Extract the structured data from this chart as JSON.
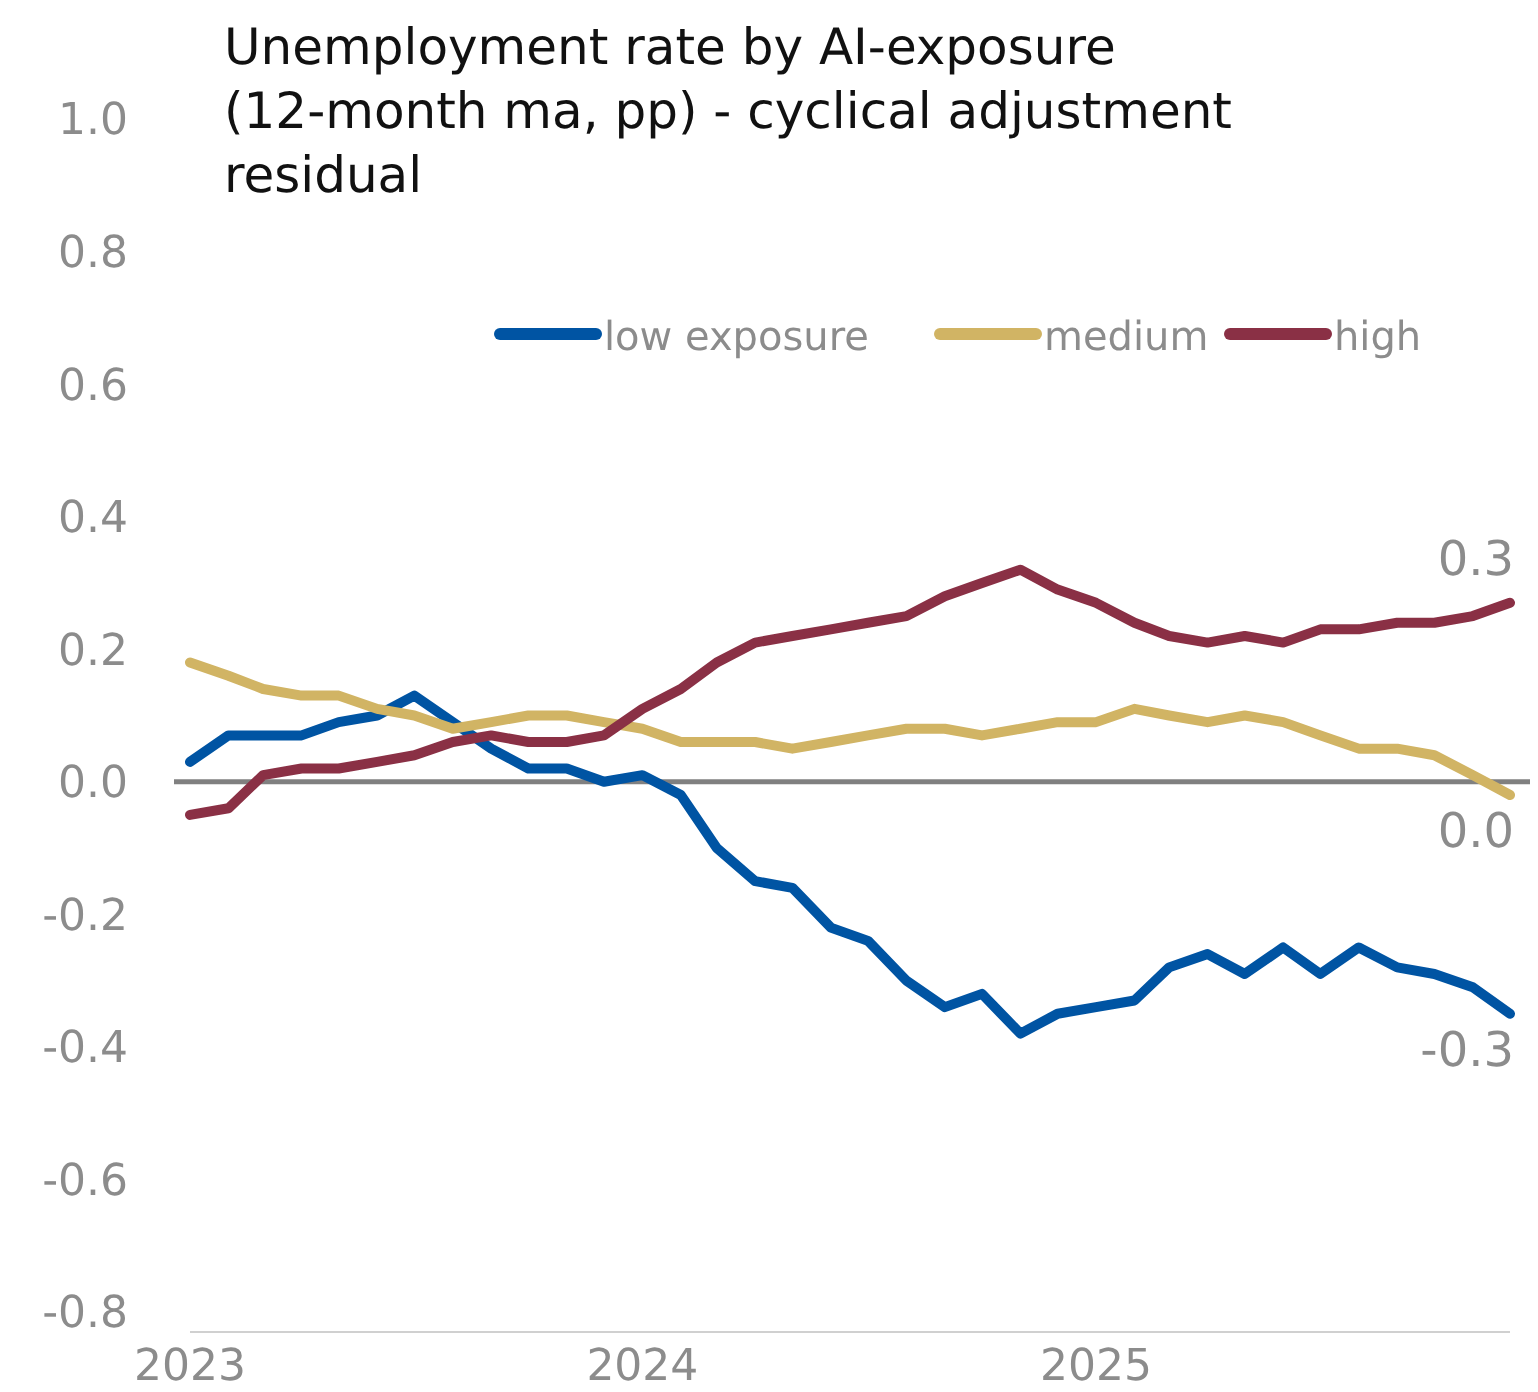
{
  "chart_data": {
    "type": "line",
    "title": "Unemployment rate by AI-exposure\n(12-month ma, pp) - cyclical adjustment\nresidual",
    "x": [
      "2023-01",
      "2023-02",
      "2023-03",
      "2023-04",
      "2023-05",
      "2023-06",
      "2023-07",
      "2023-08",
      "2023-09",
      "2023-10",
      "2023-11",
      "2023-12",
      "2024-01",
      "2024-02",
      "2024-03",
      "2024-04",
      "2024-05",
      "2024-06",
      "2024-07",
      "2024-08",
      "2024-09",
      "2024-10",
      "2024-11",
      "2024-12",
      "2025-01",
      "2025-02",
      "2025-03",
      "2025-04",
      "2025-05",
      "2025-06",
      "2025-07",
      "2025-08",
      "2025-09",
      "2025-10",
      "2025-11",
      "2025-12"
    ],
    "series": [
      {
        "name": "low exposure",
        "color": "#0054a3",
        "values": [
          0.03,
          0.07,
          0.07,
          0.07,
          0.09,
          0.1,
          0.13,
          0.09,
          0.05,
          0.02,
          0.02,
          0.0,
          0.01,
          -0.02,
          -0.1,
          -0.15,
          -0.16,
          -0.22,
          -0.24,
          -0.3,
          -0.34,
          -0.32,
          -0.38,
          -0.35,
          -0.34,
          -0.33,
          -0.28,
          -0.26,
          -0.29,
          -0.25,
          -0.29,
          -0.25,
          -0.28,
          -0.29,
          -0.31,
          -0.35
        ],
        "value_labels": [
          null,
          null,
          null,
          null,
          null,
          null,
          null,
          null,
          null,
          null,
          null,
          null,
          null,
          null,
          null,
          null,
          null,
          null,
          null,
          null,
          null,
          null,
          null,
          null,
          null,
          null,
          null,
          null,
          null,
          null,
          null,
          null,
          null,
          null,
          null,
          "-0.3"
        ]
      },
      {
        "name": "medium",
        "color": "#d1b464",
        "values": [
          0.18,
          0.16,
          0.14,
          0.13,
          0.13,
          0.11,
          0.1,
          0.08,
          0.09,
          0.1,
          0.1,
          0.09,
          0.08,
          0.06,
          0.06,
          0.06,
          0.05,
          0.06,
          0.07,
          0.08,
          0.08,
          0.07,
          0.08,
          0.09,
          0.09,
          0.11,
          0.1,
          0.09,
          0.1,
          0.09,
          0.07,
          0.05,
          0.05,
          0.04,
          0.01,
          -0.02
        ],
        "value_labels": [
          null,
          null,
          null,
          null,
          null,
          null,
          null,
          null,
          null,
          null,
          null,
          null,
          null,
          null,
          null,
          null,
          null,
          null,
          null,
          null,
          null,
          null,
          null,
          null,
          null,
          null,
          null,
          null,
          null,
          null,
          null,
          null,
          null,
          null,
          null,
          "0.0"
        ]
      },
      {
        "name": "high",
        "color": "#8a3045",
        "values": [
          -0.05,
          -0.04,
          0.01,
          0.02,
          0.02,
          0.03,
          0.04,
          0.06,
          0.07,
          0.06,
          0.06,
          0.07,
          0.11,
          0.14,
          0.18,
          0.21,
          0.22,
          0.23,
          0.24,
          0.25,
          0.28,
          0.3,
          0.32,
          0.29,
          0.27,
          0.24,
          0.22,
          0.21,
          0.22,
          0.21,
          0.23,
          0.23,
          0.24,
          0.24,
          0.25,
          0.27
        ],
        "value_labels": [
          null,
          null,
          null,
          null,
          null,
          null,
          null,
          null,
          null,
          null,
          null,
          null,
          null,
          null,
          null,
          null,
          null,
          null,
          null,
          null,
          null,
          null,
          null,
          null,
          null,
          null,
          null,
          null,
          null,
          null,
          null,
          null,
          null,
          null,
          null,
          "0.3"
        ]
      }
    ],
    "xticks": [
      {
        "value": "2023-01",
        "label": "2023"
      },
      {
        "value": "2024-01",
        "label": "2024"
      },
      {
        "value": "2025-01",
        "label": "2025"
      }
    ],
    "xlim": [
      "2023-01",
      "2025-12"
    ],
    "ylim": [
      -0.8,
      1.0
    ],
    "yticks": [
      {
        "value": -0.8,
        "label": "-0.8"
      },
      {
        "value": -0.6,
        "label": "-0.6"
      },
      {
        "value": -0.4,
        "label": "-0.4"
      },
      {
        "value": -0.2,
        "label": "-0.2"
      },
      {
        "value": 0,
        "label": "0.0"
      },
      {
        "value": 0.2,
        "label": "0.2"
      },
      {
        "value": 0.4,
        "label": "0.4"
      },
      {
        "value": 0.6,
        "label": "0.6"
      },
      {
        "value": 0.8,
        "label": "0.8"
      },
      {
        "value": 1.0,
        "label": "1.0"
      }
    ],
    "ref_lines": [
      {
        "axis": "y",
        "value": 0,
        "color": "#808080"
      }
    ],
    "legend": "top",
    "grid": false,
    "marker": "none",
    "line_style": "solid"
  }
}
